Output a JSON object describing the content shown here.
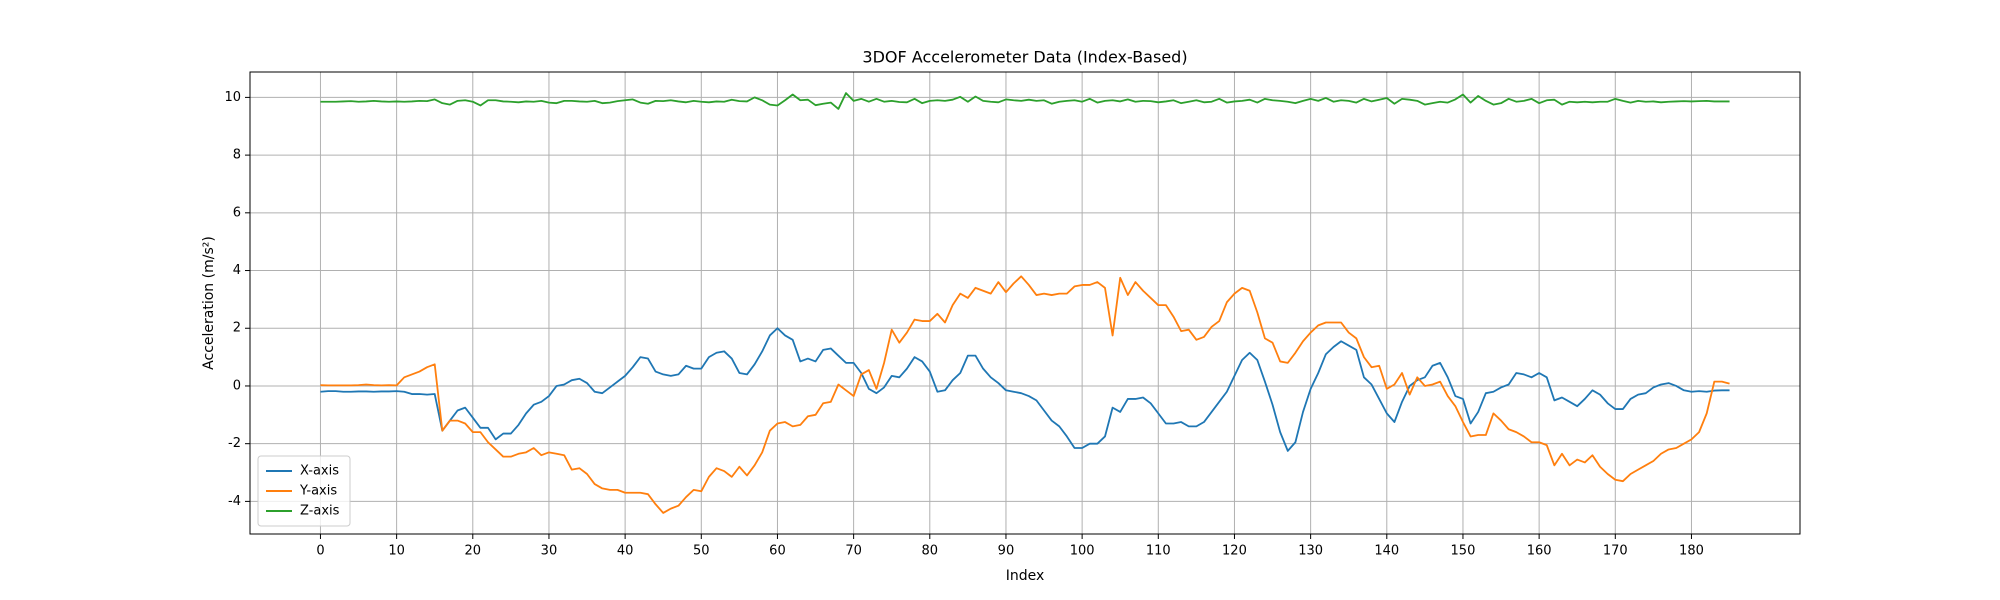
{
  "chart_data": {
    "type": "line",
    "title": "3DOF Accelerometer Data (Index-Based)",
    "x_label": "Index",
    "y_label": "Acceleration (m/s²)",
    "grid": true,
    "legend": "lower left",
    "xlim": [
      -9.25,
      194.25
    ],
    "ylim": [
      -5.13,
      10.88
    ],
    "xticks": [
      0,
      10,
      20,
      30,
      40,
      50,
      60,
      70,
      80,
      90,
      100,
      110,
      120,
      130,
      140,
      150,
      160,
      170,
      180
    ],
    "yticks": [
      -4,
      -2,
      0,
      2,
      4,
      6,
      8,
      10
    ],
    "x": [
      0,
      1,
      2,
      3,
      4,
      5,
      6,
      7,
      8,
      9,
      10,
      11,
      12,
      13,
      14,
      15,
      16,
      17,
      18,
      19,
      20,
      21,
      22,
      23,
      24,
      25,
      26,
      27,
      28,
      29,
      30,
      31,
      32,
      33,
      34,
      35,
      36,
      37,
      38,
      39,
      40,
      41,
      42,
      43,
      44,
      45,
      46,
      47,
      48,
      49,
      50,
      51,
      52,
      53,
      54,
      55,
      56,
      57,
      58,
      59,
      60,
      61,
      62,
      63,
      64,
      65,
      66,
      67,
      68,
      69,
      70,
      71,
      72,
      73,
      74,
      75,
      76,
      77,
      78,
      79,
      80,
      81,
      82,
      83,
      84,
      85,
      86,
      87,
      88,
      89,
      90,
      91,
      92,
      93,
      94,
      95,
      96,
      97,
      98,
      99,
      100,
      101,
      102,
      103,
      104,
      105,
      106,
      107,
      108,
      109,
      110,
      111,
      112,
      113,
      114,
      115,
      116,
      117,
      118,
      119,
      120,
      121,
      122,
      123,
      124,
      125,
      126,
      127,
      128,
      129,
      130,
      131,
      132,
      133,
      134,
      135,
      136,
      137,
      138,
      139,
      140,
      141,
      142,
      143,
      144,
      145,
      146,
      147,
      148,
      149,
      150,
      151,
      152,
      153,
      154,
      155,
      156,
      157,
      158,
      159,
      160,
      161,
      162,
      163,
      164,
      165,
      166,
      167,
      168,
      169,
      170,
      171,
      172,
      173,
      174,
      175,
      176,
      177,
      178,
      179,
      180,
      181,
      182,
      183,
      184,
      185
    ],
    "series": [
      {
        "name": "X-axis",
        "color": "#1f77b4",
        "values": [
          -0.2,
          -0.18,
          -0.18,
          -0.2,
          -0.2,
          -0.19,
          -0.19,
          -0.2,
          -0.19,
          -0.19,
          -0.18,
          -0.2,
          -0.28,
          -0.28,
          -0.3,
          -0.28,
          -1.55,
          -1.2,
          -0.85,
          -0.75,
          -1.1,
          -1.45,
          -1.45,
          -1.85,
          -1.65,
          -1.65,
          -1.35,
          -0.95,
          -0.65,
          -0.55,
          -0.35,
          0.0,
          0.05,
          0.2,
          0.25,
          0.1,
          -0.2,
          -0.25,
          -0.05,
          0.15,
          0.35,
          0.65,
          1.0,
          0.95,
          0.5,
          0.4,
          0.35,
          0.4,
          0.7,
          0.6,
          0.6,
          1.0,
          1.15,
          1.2,
          0.95,
          0.45,
          0.4,
          0.75,
          1.2,
          1.75,
          2.0,
          1.75,
          1.6,
          0.85,
          0.95,
          0.85,
          1.25,
          1.3,
          1.05,
          0.8,
          0.8,
          0.45,
          -0.1,
          -0.25,
          -0.05,
          0.35,
          0.3,
          0.6,
          1.0,
          0.85,
          0.5,
          -0.2,
          -0.15,
          0.2,
          0.45,
          1.05,
          1.05,
          0.6,
          0.3,
          0.1,
          -0.15,
          -0.2,
          -0.25,
          -0.35,
          -0.5,
          -0.85,
          -1.2,
          -1.4,
          -1.75,
          -2.15,
          -2.15,
          -2.0,
          -2.0,
          -1.75,
          -0.75,
          -0.9,
          -0.45,
          -0.45,
          -0.4,
          -0.6,
          -0.95,
          -1.3,
          -1.3,
          -1.25,
          -1.4,
          -1.4,
          -1.25,
          -0.9,
          -0.55,
          -0.2,
          0.35,
          0.9,
          1.15,
          0.9,
          0.15,
          -0.65,
          -1.6,
          -2.25,
          -1.95,
          -0.9,
          -0.1,
          0.45,
          1.1,
          1.35,
          1.55,
          1.4,
          1.25,
          0.3,
          0.05,
          -0.45,
          -0.95,
          -1.25,
          -0.55,
          0.0,
          0.2,
          0.3,
          0.7,
          0.8,
          0.3,
          -0.35,
          -0.45,
          -1.3,
          -0.9,
          -0.25,
          -0.2,
          -0.05,
          0.05,
          0.45,
          0.4,
          0.3,
          0.45,
          0.3,
          -0.5,
          -0.4,
          -0.55,
          -0.7,
          -0.45,
          -0.15,
          -0.3,
          -0.6,
          -0.8,
          -0.8,
          -0.45,
          -0.3,
          -0.25,
          -0.05,
          0.05,
          0.1,
          0.0,
          -0.15,
          -0.2,
          -0.18,
          -0.2,
          -0.16,
          -0.15,
          -0.15
        ]
      },
      {
        "name": "Y-axis",
        "color": "#ff7f0e",
        "values": [
          0.03,
          0.02,
          0.02,
          0.02,
          0.02,
          0.03,
          0.05,
          0.03,
          0.02,
          0.03,
          0.02,
          0.3,
          0.4,
          0.5,
          0.65,
          0.75,
          -1.55,
          -1.2,
          -1.2,
          -1.3,
          -1.6,
          -1.6,
          -1.95,
          -2.2,
          -2.45,
          -2.45,
          -2.35,
          -2.3,
          -2.15,
          -2.4,
          -2.3,
          -2.35,
          -2.4,
          -2.9,
          -2.85,
          -3.05,
          -3.4,
          -3.55,
          -3.6,
          -3.6,
          -3.7,
          -3.7,
          -3.7,
          -3.75,
          -4.1,
          -4.4,
          -4.25,
          -4.15,
          -3.85,
          -3.6,
          -3.65,
          -3.15,
          -2.85,
          -2.95,
          -3.15,
          -2.8,
          -3.1,
          -2.75,
          -2.3,
          -1.55,
          -1.3,
          -1.25,
          -1.4,
          -1.35,
          -1.05,
          -1.0,
          -0.6,
          -0.55,
          0.05,
          -0.15,
          -0.35,
          0.4,
          0.55,
          -0.1,
          0.8,
          1.95,
          1.5,
          1.85,
          2.3,
          2.25,
          2.25,
          2.5,
          2.2,
          2.8,
          3.2,
          3.05,
          3.4,
          3.3,
          3.2,
          3.6,
          3.25,
          3.55,
          3.8,
          3.5,
          3.15,
          3.2,
          3.15,
          3.2,
          3.2,
          3.45,
          3.5,
          3.5,
          3.6,
          3.4,
          1.75,
          3.75,
          3.15,
          3.6,
          3.3,
          3.05,
          2.8,
          2.8,
          2.4,
          1.9,
          1.95,
          1.6,
          1.7,
          2.05,
          2.25,
          2.9,
          3.2,
          3.4,
          3.3,
          2.55,
          1.65,
          1.5,
          0.85,
          0.8,
          1.15,
          1.55,
          1.85,
          2.1,
          2.2,
          2.2,
          2.2,
          1.85,
          1.65,
          1.0,
          0.65,
          0.7,
          -0.1,
          0.05,
          0.45,
          -0.3,
          0.3,
          0.0,
          0.05,
          0.15,
          -0.35,
          -0.7,
          -1.25,
          -1.75,
          -1.7,
          -1.7,
          -0.95,
          -1.2,
          -1.5,
          -1.6,
          -1.75,
          -1.95,
          -1.95,
          -2.05,
          -2.75,
          -2.35,
          -2.75,
          -2.55,
          -2.65,
          -2.4,
          -2.8,
          -3.05,
          -3.25,
          -3.3,
          -3.05,
          -2.9,
          -2.75,
          -2.6,
          -2.35,
          -2.2,
          -2.15,
          -2.0,
          -1.85,
          -1.6,
          -0.95,
          0.15,
          0.15,
          0.08
        ]
      },
      {
        "name": "Z-axis",
        "color": "#2ca02c",
        "values": [
          9.85,
          9.85,
          9.85,
          9.86,
          9.87,
          9.85,
          9.86,
          9.88,
          9.86,
          9.85,
          9.86,
          9.85,
          9.86,
          9.88,
          9.87,
          9.93,
          9.8,
          9.75,
          9.88,
          9.9,
          9.85,
          9.72,
          9.9,
          9.9,
          9.86,
          9.85,
          9.83,
          9.86,
          9.85,
          9.88,
          9.82,
          9.8,
          9.88,
          9.88,
          9.86,
          9.85,
          9.88,
          9.8,
          9.82,
          9.87,
          9.9,
          9.93,
          9.82,
          9.78,
          9.88,
          9.87,
          9.9,
          9.86,
          9.83,
          9.88,
          9.85,
          9.83,
          9.86,
          9.85,
          9.92,
          9.87,
          9.86,
          10.0,
          9.9,
          9.75,
          9.72,
          9.9,
          10.1,
          9.9,
          9.92,
          9.73,
          9.78,
          9.82,
          9.6,
          10.15,
          9.88,
          9.95,
          9.85,
          9.95,
          9.85,
          9.88,
          9.84,
          9.83,
          9.95,
          9.8,
          9.88,
          9.9,
          9.88,
          9.92,
          10.02,
          9.85,
          10.03,
          9.88,
          9.85,
          9.83,
          9.93,
          9.9,
          9.88,
          9.92,
          9.88,
          9.9,
          9.78,
          9.85,
          9.88,
          9.9,
          9.85,
          9.95,
          9.82,
          9.88,
          9.9,
          9.86,
          9.93,
          9.85,
          9.88,
          9.87,
          9.83,
          9.86,
          9.9,
          9.8,
          9.85,
          9.9,
          9.83,
          9.85,
          9.95,
          9.82,
          9.86,
          9.88,
          9.92,
          9.82,
          9.95,
          9.9,
          9.88,
          9.85,
          9.8,
          9.88,
          9.95,
          9.88,
          9.98,
          9.85,
          9.9,
          9.88,
          9.82,
          9.95,
          9.86,
          9.92,
          9.98,
          9.78,
          9.95,
          9.92,
          9.88,
          9.75,
          9.8,
          9.85,
          9.82,
          9.93,
          10.1,
          9.82,
          10.05,
          9.88,
          9.75,
          9.8,
          9.95,
          9.85,
          9.88,
          9.95,
          9.8,
          9.9,
          9.92,
          9.75,
          9.85,
          9.83,
          9.85,
          9.83,
          9.85,
          9.85,
          9.95,
          9.88,
          9.82,
          9.88,
          9.85,
          9.86,
          9.83,
          9.85,
          9.86,
          9.87,
          9.86,
          9.87,
          9.88,
          9.86,
          9.86,
          9.86
        ]
      }
    ]
  }
}
